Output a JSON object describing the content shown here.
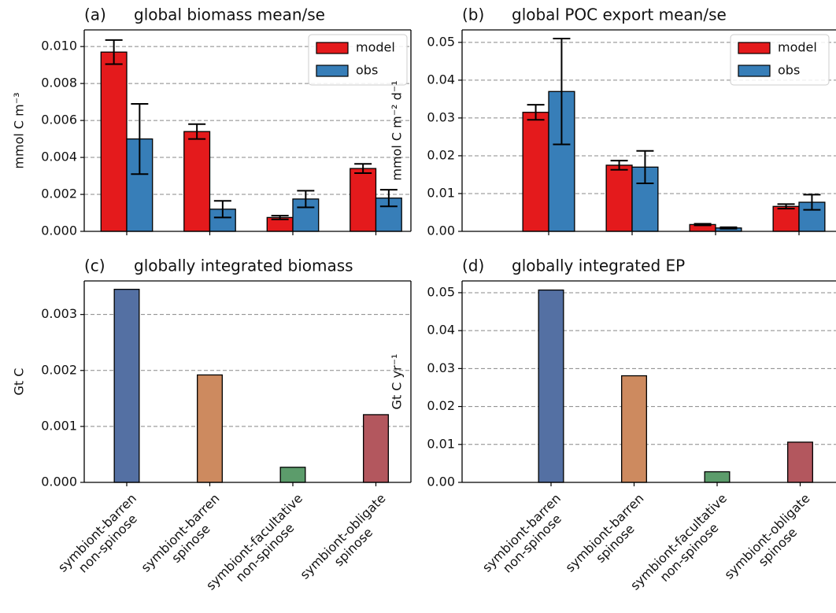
{
  "chart_data": [
    {
      "type": "grouped_bar",
      "panel": "(a)",
      "title": "global biomass mean/se",
      "ylabel": "mmol C m⁻³",
      "categories": [
        null,
        null,
        null,
        null
      ],
      "series": [
        {
          "name": "model",
          "color": "#e41a1c",
          "values": [
            0.0097,
            0.0054,
            0.00075,
            0.0034
          ],
          "errors": [
            0.00065,
            0.0004,
            0.0001,
            0.00025
          ]
        },
        {
          "name": "obs",
          "color": "#377eb8",
          "values": [
            0.005,
            0.0012,
            0.00175,
            0.0018
          ],
          "errors": [
            0.0019,
            0.00045,
            0.00045,
            0.00045
          ]
        }
      ],
      "ylim": [
        0,
        0.0109
      ],
      "yticks": [
        {
          "value": 0,
          "label": "0.000"
        },
        {
          "value": 0.002,
          "label": "0.002"
        },
        {
          "value": 0.004,
          "label": "0.004"
        },
        {
          "value": 0.006,
          "label": "0.006"
        },
        {
          "value": 0.008,
          "label": "0.008"
        },
        {
          "value": 0.01,
          "label": "0.010"
        }
      ],
      "grid": true,
      "legend": "upper right"
    },
    {
      "type": "grouped_bar",
      "panel": "(b)",
      "title": "global POC export mean/se",
      "ylabel": "mmol C m⁻² d⁻¹",
      "categories": [
        null,
        null,
        null,
        null
      ],
      "series": [
        {
          "name": "model",
          "color": "#e41a1c",
          "values": [
            0.0315,
            0.0175,
            0.0018,
            0.0066
          ],
          "errors": [
            0.002,
            0.0012,
            0.0002,
            0.0006
          ]
        },
        {
          "name": "obs",
          "color": "#377eb8",
          "values": [
            0.037,
            0.017,
            0.0009,
            0.0077
          ],
          "errors": [
            0.014,
            0.0043,
            0.0002,
            0.002
          ]
        }
      ],
      "ylim": [
        0,
        0.0533
      ],
      "yticks": [
        {
          "value": 0,
          "label": "0.00"
        },
        {
          "value": 0.01,
          "label": "0.01"
        },
        {
          "value": 0.02,
          "label": "0.02"
        },
        {
          "value": 0.03,
          "label": "0.03"
        },
        {
          "value": 0.04,
          "label": "0.04"
        },
        {
          "value": 0.05,
          "label": "0.05"
        }
      ],
      "grid": true,
      "legend": "upper right"
    },
    {
      "type": "bar",
      "panel": "(c)",
      "title": "globally integrated biomass",
      "ylabel": "Gt C",
      "categories": [
        "symbiont-barren\nnon-spinose",
        "symbiont-barren\nspinose",
        "symbiont-facultative\nnon-spinose",
        "symbiont-obligate\nspinose"
      ],
      "values": [
        0.00345,
        0.00192,
        0.00027,
        0.00121
      ],
      "colors": [
        "#5470a3",
        "#cd8a5f",
        "#5c9c6b",
        "#b3575e"
      ],
      "ylim": [
        0,
        0.0036
      ],
      "yticks": [
        {
          "value": 0,
          "label": "0.000"
        },
        {
          "value": 0.001,
          "label": "0.001"
        },
        {
          "value": 0.002,
          "label": "0.002"
        },
        {
          "value": 0.003,
          "label": "0.003"
        }
      ],
      "grid": true
    },
    {
      "type": "bar",
      "panel": "(d)",
      "title": "globally integrated EP",
      "ylabel": "Gt C yr⁻¹",
      "categories": [
        "symbiont-barren\nnon-spinose",
        "symbiont-barren\nspinose",
        "symbiont-facultative\nnon-spinose",
        "symbiont-obligate\nspinose"
      ],
      "values": [
        0.0507,
        0.0281,
        0.0028,
        0.0106
      ],
      "colors": [
        "#5470a3",
        "#cd8a5f",
        "#5c9c6b",
        "#b3575e"
      ],
      "ylim": [
        0,
        0.0531
      ],
      "yticks": [
        {
          "value": 0,
          "label": "0.00"
        },
        {
          "value": 0.01,
          "label": "0.01"
        },
        {
          "value": 0.02,
          "label": "0.02"
        },
        {
          "value": 0.03,
          "label": "0.03"
        },
        {
          "value": 0.04,
          "label": "0.04"
        },
        {
          "value": 0.05,
          "label": "0.05"
        }
      ],
      "grid": true
    }
  ]
}
